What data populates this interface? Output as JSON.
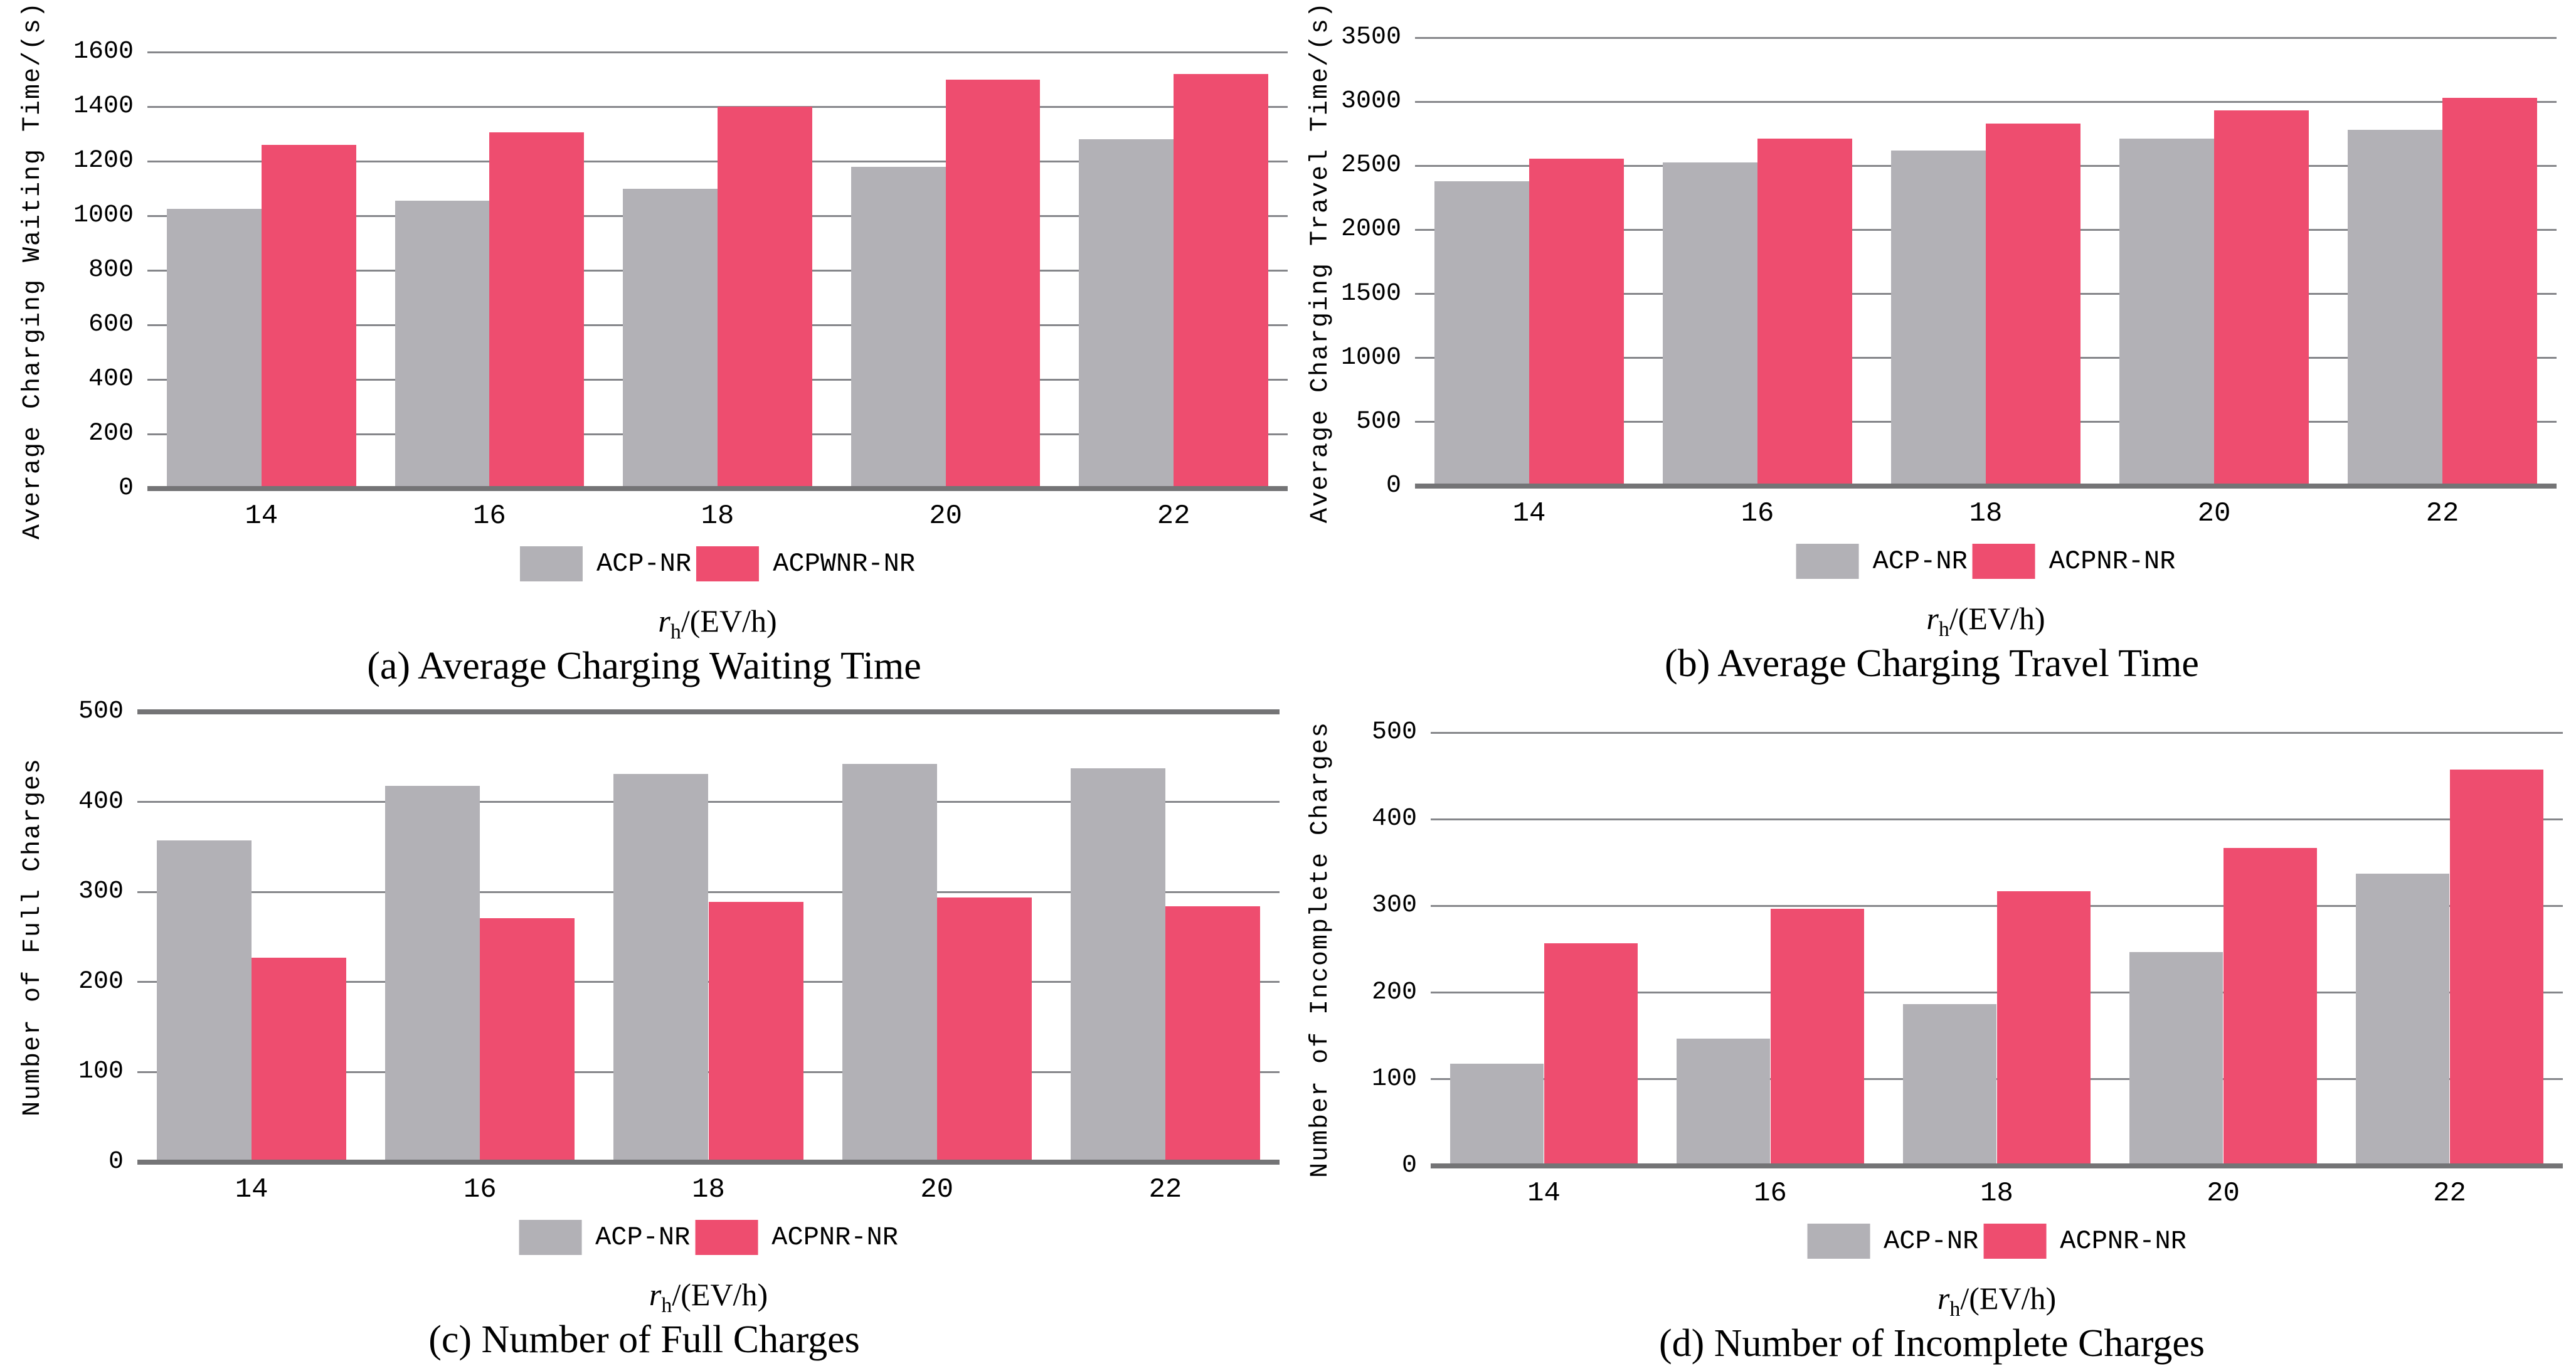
{
  "colors": {
    "series1_fill": "#b2b1b6",
    "series2_fill": "#ee4d6f",
    "gridline": "#85868a",
    "axis": "#747476",
    "text": "#000000"
  },
  "xlabel_parts": {
    "variable": "r",
    "subscript": "h",
    "rest": "/(EV/h)"
  },
  "chart_data": [
    {
      "panel": "a",
      "type": "bar",
      "caption": "(a) Average Charging Waiting Time",
      "ylabel": "Average Charging Waiting Time/(s)",
      "xlabel": "r_h/(EV/h)",
      "categories": [
        "14",
        "16",
        "18",
        "20",
        "22"
      ],
      "series": [
        {
          "name": "ACP-NR",
          "values": [
            1025,
            1055,
            1100,
            1180,
            1280
          ]
        },
        {
          "name": "ACPWNR-NR",
          "values": [
            1260,
            1305,
            1400,
            1500,
            1520
          ]
        }
      ],
      "ylim": [
        0,
        1600
      ],
      "yticks": [
        0,
        200,
        400,
        600,
        800,
        1000,
        1200,
        1400,
        1600
      ],
      "grid": true,
      "legend_position": "below"
    },
    {
      "panel": "b",
      "type": "bar",
      "caption": "(b) Average Charging Travel Time",
      "ylabel": "Average Charging Travel Time/(s)",
      "xlabel": "r_h/(EV/h)",
      "categories": [
        "14",
        "16",
        "18",
        "20",
        "22"
      ],
      "series": [
        {
          "name": "ACP-NR",
          "values": [
            2380,
            2525,
            2620,
            2710,
            2780
          ]
        },
        {
          "name": "ACPNR-NR",
          "values": [
            2555,
            2710,
            2830,
            2930,
            3030
          ]
        }
      ],
      "ylim": [
        0,
        3500
      ],
      "yticks": [
        0,
        500,
        1000,
        1500,
        2000,
        2500,
        3000,
        3500
      ],
      "grid": true,
      "legend_position": "below"
    },
    {
      "panel": "c",
      "type": "bar",
      "caption": "(c) Number of Full Charges",
      "ylabel": "Number of Full Charges",
      "xlabel": "r_h/(EV/h)",
      "categories": [
        "14",
        "16",
        "18",
        "20",
        "22"
      ],
      "series": [
        {
          "name": "ACP-NR",
          "values": [
            357,
            418,
            431,
            442,
            437
          ]
        },
        {
          "name": "ACPNR-NR",
          "values": [
            227,
            271,
            289,
            294,
            284
          ]
        }
      ],
      "ylim": [
        0,
        500
      ],
      "yticks": [
        0,
        100,
        200,
        300,
        400,
        500
      ],
      "grid": true,
      "top_border": true,
      "legend_position": "below"
    },
    {
      "panel": "d",
      "type": "bar",
      "caption": "(d) Number of Incomplete Charges",
      "ylabel": "Number of Incomplete Charges",
      "xlabel": "r_h/(EV/h)",
      "categories": [
        "14",
        "16",
        "18",
        "20",
        "22"
      ],
      "series": [
        {
          "name": "ACP-NR",
          "values": [
            118,
            147,
            187,
            247,
            337
          ]
        },
        {
          "name": "ACPNR-NR",
          "values": [
            257,
            297,
            317,
            367,
            457
          ]
        }
      ],
      "ylim": [
        0,
        500
      ],
      "yticks": [
        0,
        100,
        200,
        300,
        400,
        500
      ],
      "grid": true,
      "legend_position": "below"
    }
  ]
}
